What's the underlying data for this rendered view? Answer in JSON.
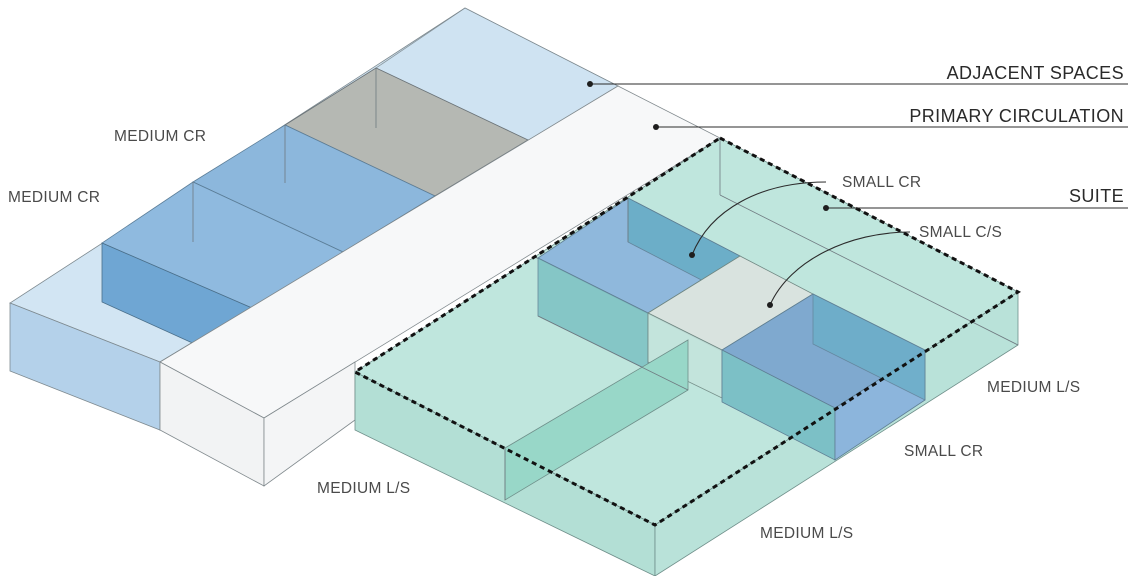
{
  "labels": {
    "adjacent_spaces": "ADJACENT SPACES",
    "primary_circulation": "PRIMARY CIRCULATION",
    "suite": "SUITE",
    "medium_cr_top": "MEDIUM CR",
    "medium_cr_left": "MEDIUM CR",
    "small_cr_top": "SMALL CR",
    "small_cs": "SMALL C/S",
    "medium_ls_right": "MEDIUM L/S",
    "small_cr_right": "SMALL CR",
    "medium_ls_left": "MEDIUM L/S",
    "medium_ls_bottom": "MEDIUM L/S"
  },
  "colors": {
    "light_blue": "#c9e0f0",
    "medium_blue": "#8db8dc",
    "deep_blue": "#4f8fc4",
    "grey": "#a8aeaa",
    "teal": "#b9e3da",
    "teal_deep": "#8fd3c4",
    "circulation": "#f7f8f9",
    "light_grey_block": "#d9e0dd"
  }
}
